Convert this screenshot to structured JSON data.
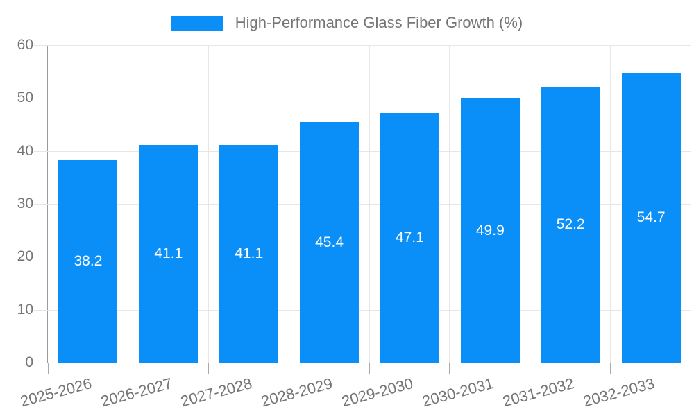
{
  "legend": {
    "label": "High-Performance Glass Fiber Growth (%)"
  },
  "chart_data": {
    "type": "bar",
    "title": "High-Performance Glass Fiber Growth (%)",
    "legend": "High-Performance Glass Fiber Growth (%)",
    "legend_position": "top",
    "categories": [
      "2025-2026",
      "2026-2027",
      "2027-2028",
      "2028-2029",
      "2029-2030",
      "2030-2031",
      "2031-2032",
      "2032-2033"
    ],
    "values": [
      38.2,
      41.1,
      41.1,
      45.4,
      47.1,
      49.9,
      52.2,
      54.7
    ],
    "value_labels": [
      "38.2",
      "41.1",
      "41.1",
      "45.4",
      "47.1",
      "49.9",
      "52.2",
      "54.7"
    ],
    "xlabel": "",
    "ylabel": "",
    "ylim": [
      0,
      60
    ],
    "yticks": [
      0,
      10,
      20,
      30,
      40,
      50,
      60
    ],
    "grid": true,
    "x_label_rotation_deg": -15,
    "bar_color": "#0a8ff9",
    "value_label_color": "#ffffff",
    "axis_line_color": "#999999",
    "grid_color": "#e6e6e6",
    "tick_label_color": "#757575",
    "legend_text_color": "#757575"
  }
}
